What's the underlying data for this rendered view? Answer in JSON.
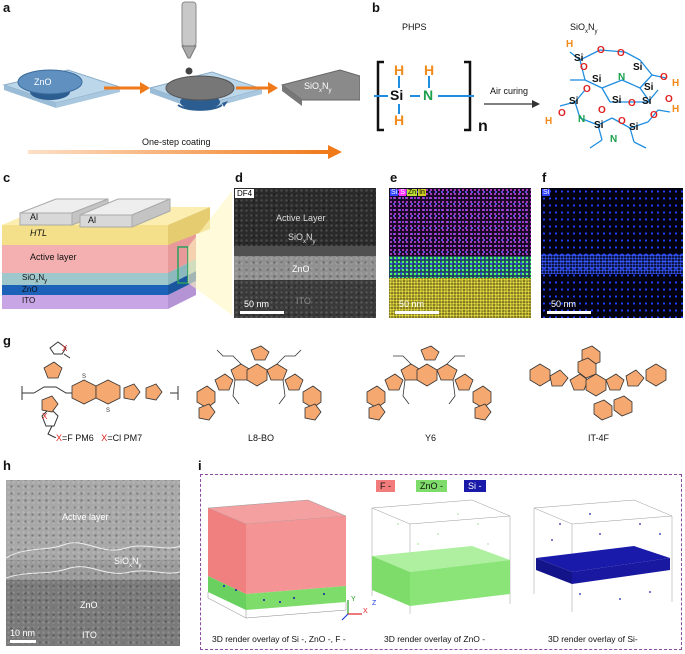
{
  "panels": {
    "a": {
      "label": "a",
      "zno": "ZnO",
      "siox": "SiOxNy",
      "siox_base": "SiO",
      "siox_sub1": "x",
      "siox_mid": "N",
      "siox_sub2": "y",
      "arrow_text": "One-step coating"
    },
    "b": {
      "label": "b",
      "phps": "PHPS",
      "product_base": "SiO",
      "product_sub1": "x",
      "product_mid": "N",
      "product_sub2": "y",
      "reaction": "Air curing",
      "n": "n",
      "atoms": {
        "H": "H",
        "Si": "Si",
        "N": "N",
        "O": "O"
      }
    },
    "c": {
      "label": "c",
      "electrode1": "Al",
      "electrode2": "Al",
      "htl": "HTL",
      "active": "Active layer",
      "siox_base": "SiO",
      "siox_sub1": "x",
      "siox_mid": "N",
      "siox_sub2": "y",
      "zno": "ZnO",
      "ito": "ITO"
    },
    "d": {
      "label": "d",
      "tag": "DF4",
      "active": "Active Layer",
      "siox_base": "SiO",
      "siox_sub1": "x",
      "siox_mid": "N",
      "siox_sub2": "y",
      "zno": "ZnO",
      "ito": "ITO",
      "scale": "50 nm"
    },
    "e": {
      "label": "e",
      "legend": [
        "Si",
        "S",
        "Zn",
        "In"
      ],
      "legend_colors": [
        "#3344ff",
        "#ff33ff",
        "#bbdd33",
        "#cccc22"
      ],
      "scale": "50 nm"
    },
    "f": {
      "label": "f",
      "legend": [
        "Si"
      ],
      "scale": "50 nm"
    },
    "g": {
      "label": "g",
      "molecules": [
        "L8-BO",
        "Y6",
        "IT-4F"
      ],
      "pm6_x": "X",
      "pm6_text": "=F  PM6",
      "pm7_x": "X",
      "pm7_text": "=Cl PM7"
    },
    "h": {
      "label": "h",
      "active": "Active layer",
      "siox_base": "SiO",
      "siox_sub1": "x",
      "siox_mid": "N",
      "siox_sub2": "y",
      "zno": "ZnO",
      "ito": "ITO",
      "scale": "10 nm"
    },
    "i": {
      "label": "i",
      "legend": [
        "F -",
        "ZnO -",
        "Si -"
      ],
      "legend_colors": [
        "#f27c7c",
        "#7ddc6a",
        "#1a1aaa"
      ],
      "captions": [
        "3D render overlay of Si -, ZnO -, F -",
        "3D render overlay of ZnO -",
        "3D render overlay of Si-"
      ],
      "axes": {
        "x": "X",
        "y": "Y",
        "z": "Z"
      }
    }
  }
}
